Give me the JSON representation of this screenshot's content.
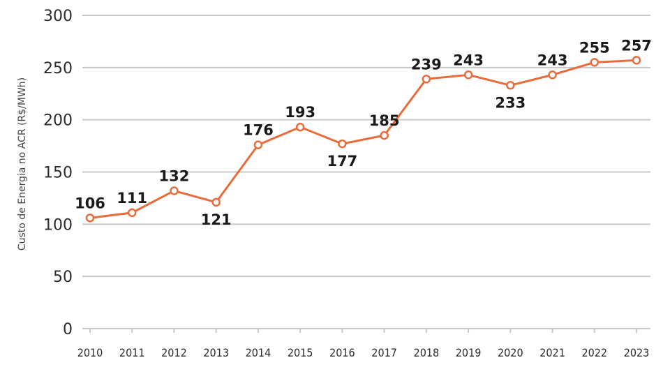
{
  "chart_data": {
    "type": "line",
    "title": "",
    "xlabel": "",
    "ylabel": "Custo de Energia no ACR (R$/MWh)",
    "ylim": [
      0,
      300
    ],
    "yticks": [
      0,
      50,
      100,
      150,
      200,
      250,
      300
    ],
    "grid": true,
    "legend": "none",
    "categories": [
      "2010",
      "2011",
      "2012",
      "2013",
      "2014",
      "2015",
      "2016",
      "2017",
      "2018",
      "2019",
      "2020",
      "2021",
      "2022",
      "2023"
    ],
    "series": [
      {
        "values": [
          106,
          111,
          132,
          121,
          176,
          193,
          177,
          185,
          239,
          243,
          233,
          243,
          255,
          257
        ],
        "color": "#ea6b3a",
        "labels": [
          "106",
          "111",
          "132",
          "121",
          "176",
          "193",
          "177",
          "185",
          "239",
          "243",
          "233",
          "243",
          "255",
          "257"
        ]
      }
    ]
  }
}
